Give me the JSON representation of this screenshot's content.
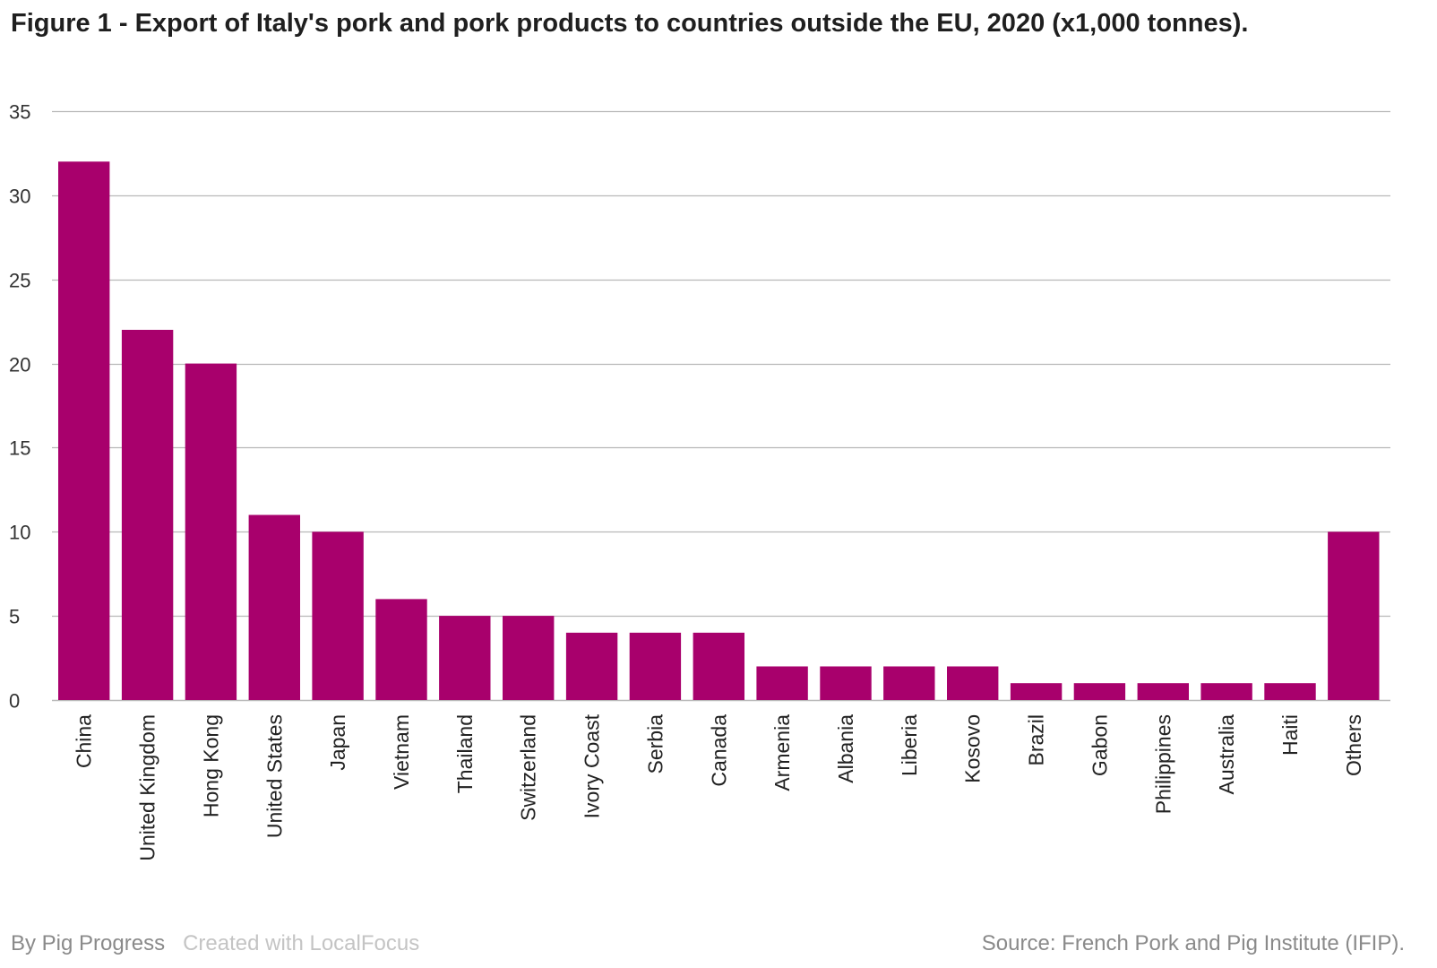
{
  "chart_data": {
    "type": "bar",
    "title": "Figure 1 - Export of Italy's pork and pork products to countries outside the EU, 2020 (x1,000 tonnes).",
    "categories": [
      "China",
      "United Kingdom",
      "Hong Kong",
      "United States",
      "Japan",
      "Vietnam",
      "Thailand",
      "Switzerland",
      "Ivory Coast",
      "Serbia",
      "Canada",
      "Armenia",
      "Albania",
      "Liberia",
      "Kosovo",
      "Brazil",
      "Gabon",
      "Philippines",
      "Australia",
      "Haiti",
      "Others"
    ],
    "values": [
      32,
      22,
      20,
      11,
      10,
      6,
      5,
      5,
      4,
      4,
      4,
      2,
      2,
      2,
      2,
      1,
      1,
      1,
      1,
      1,
      10
    ],
    "ylim": [
      0,
      35
    ],
    "yticks": [
      0,
      5,
      10,
      15,
      20,
      25,
      30,
      35
    ],
    "xlabel": "",
    "ylabel": "",
    "grid": true,
    "bar_color": "#a8006c",
    "grid_color": "#b8b8b8"
  },
  "footer": {
    "byline": "By Pig Progress",
    "created": "Created with LocalFocus",
    "source": "Source:  French Pork and Pig Institute (IFIP)."
  }
}
